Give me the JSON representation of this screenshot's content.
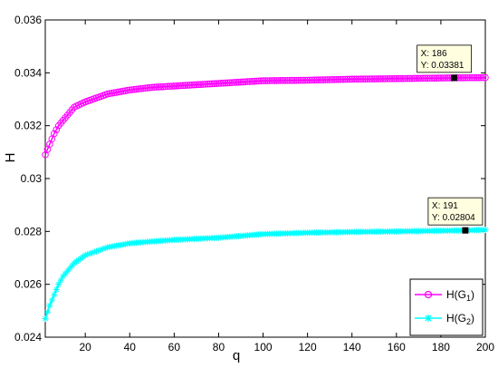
{
  "chart_data": {
    "type": "line",
    "xlabel": "q",
    "ylabel": "H",
    "xlim": [
      2,
      200
    ],
    "ylim": [
      0.024,
      0.036
    ],
    "x_ticks": [
      "20",
      "40",
      "60",
      "80",
      "100",
      "120",
      "140",
      "160",
      "180",
      "200"
    ],
    "y_ticks": [
      "0.024",
      "0.026",
      "0.028",
      "0.03",
      "0.032",
      "0.034",
      "0.036"
    ],
    "grid": false,
    "legend_position": "bottom-right",
    "series": [
      {
        "name": "H(G1)",
        "legend_main": "H(G",
        "legend_sub": "1",
        "legend_close": ")",
        "color": "#ff00ff",
        "marker": "circle",
        "x": [
          2,
          4,
          6,
          8,
          10,
          15,
          20,
          30,
          40,
          50,
          60,
          80,
          100,
          120,
          140,
          160,
          186,
          200
        ],
        "y": [
          0.0309,
          0.0313,
          0.0317,
          0.032,
          0.0322,
          0.0327,
          0.0329,
          0.0332,
          0.03335,
          0.03345,
          0.0335,
          0.0336,
          0.0337,
          0.03372,
          0.03376,
          0.03378,
          0.03381,
          0.03382
        ]
      },
      {
        "name": "H(G2)",
        "legend_main": "H(G",
        "legend_sub": "2",
        "legend_close": ")",
        "color": "#00ffff",
        "marker": "asterisk",
        "x": [
          2,
          4,
          6,
          8,
          10,
          15,
          20,
          30,
          40,
          50,
          60,
          80,
          100,
          120,
          140,
          160,
          191,
          200
        ],
        "y": [
          0.0247,
          0.0252,
          0.0256,
          0.026,
          0.0263,
          0.0268,
          0.0271,
          0.0274,
          0.02755,
          0.02762,
          0.02768,
          0.02776,
          0.0279,
          0.02795,
          0.02798,
          0.028,
          0.02804,
          0.02806
        ]
      }
    ],
    "datatips": [
      {
        "series": 0,
        "x": 186,
        "y": 0.03381,
        "line1": "X: 186",
        "line2": "Y: 0.03381"
      },
      {
        "series": 1,
        "x": 191,
        "y": 0.02804,
        "line1": "X: 191",
        "line2": "Y: 0.02804"
      }
    ]
  }
}
